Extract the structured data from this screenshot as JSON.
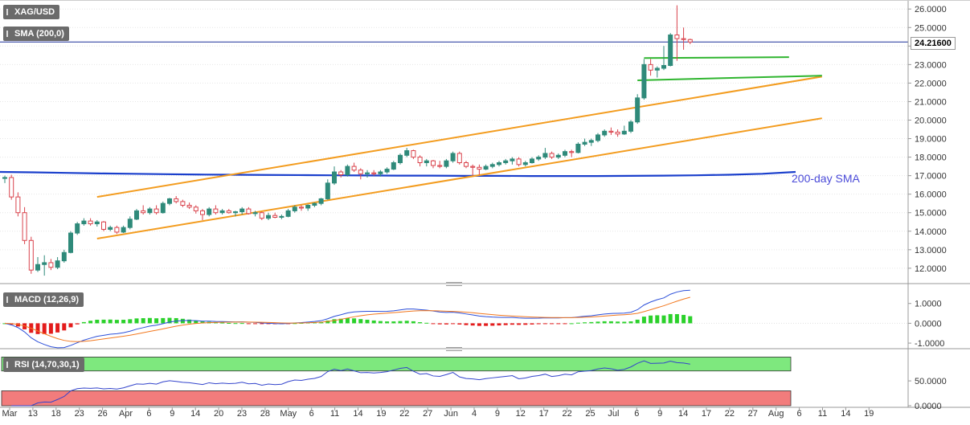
{
  "symbol": "XAG/USD",
  "current_price": "24.21600",
  "annotation": "200-day SMA",
  "colors": {
    "up": "#2f8a7a",
    "down": "#d9434c",
    "trend": "#f39c1f",
    "support": "#2fb52f",
    "sma": "#1a3fcc",
    "macd_line": "#2c4fd9",
    "signal_line": "#f2781f",
    "hist_pos": "#2bd12b",
    "hist_neg": "#e31b1b",
    "rsi_line": "#3344cc",
    "rsi_over": "#7ee87e",
    "rsi_under": "#f27c7c"
  },
  "indicators": {
    "sma_label": "SMA (200,0)",
    "macd_label": "MACD (12,26,9)",
    "rsi_label": "RSI (14,70,30,1)"
  },
  "chart_data": [
    {
      "type": "candlestick",
      "title": "XAG/USD",
      "ylim": [
        11.3,
        26.4
      ],
      "y_ticks": [
        "12.0000",
        "13.0000",
        "14.0000",
        "15.0000",
        "16.0000",
        "17.0000",
        "18.0000",
        "19.0000",
        "20.0000",
        "21.0000",
        "22.0000",
        "23.0000",
        "24.0000",
        "25.0000",
        "26.0000"
      ],
      "x_ticks": [
        "Mar",
        "13",
        "18",
        "23",
        "26",
        "Apr",
        "6",
        "9",
        "14",
        "20",
        "23",
        "28",
        "May",
        "6",
        "11",
        "14",
        "19",
        "22",
        "27",
        "Jun",
        "4",
        "9",
        "12",
        "17",
        "22",
        "25",
        "Jul",
        "6",
        "9",
        "14",
        "17",
        "22",
        "27",
        "Aug",
        "6",
        "11",
        "14",
        "19"
      ],
      "candles": [
        [
          16.85,
          17.0,
          16.6,
          16.9
        ],
        [
          16.9,
          17.05,
          15.7,
          15.85
        ],
        [
          15.85,
          16.1,
          14.8,
          15.0
        ],
        [
          15.0,
          15.3,
          13.3,
          13.5
        ],
        [
          13.5,
          13.7,
          11.7,
          11.9
        ],
        [
          11.9,
          12.6,
          11.8,
          12.2
        ],
        [
          12.2,
          12.7,
          11.6,
          12.3
        ],
        [
          12.3,
          12.5,
          11.9,
          12.05
        ],
        [
          12.05,
          12.6,
          11.95,
          12.4
        ],
        [
          12.4,
          13.0,
          12.3,
          12.85
        ],
        [
          12.85,
          14.0,
          12.8,
          13.9
        ],
        [
          13.9,
          14.5,
          13.8,
          14.4
        ],
        [
          14.4,
          14.7,
          14.3,
          14.55
        ],
        [
          14.55,
          14.7,
          14.3,
          14.4
        ],
        [
          14.4,
          14.6,
          14.25,
          14.5
        ],
        [
          14.5,
          14.55,
          14.0,
          14.1
        ],
        [
          14.1,
          14.3,
          14.0,
          14.2
        ],
        [
          14.2,
          14.3,
          13.85,
          13.95
        ],
        [
          13.95,
          14.3,
          13.9,
          14.2
        ],
        [
          14.2,
          14.8,
          14.1,
          14.65
        ],
        [
          14.65,
          15.2,
          14.6,
          15.1
        ],
        [
          15.1,
          15.4,
          14.9,
          15.0
        ],
        [
          15.0,
          15.3,
          14.9,
          15.2
        ],
        [
          15.2,
          15.4,
          14.9,
          15.0
        ],
        [
          15.0,
          15.6,
          14.95,
          15.5
        ],
        [
          15.5,
          15.8,
          15.4,
          15.75
        ],
        [
          15.75,
          15.9,
          15.5,
          15.6
        ],
        [
          15.6,
          15.7,
          15.3,
          15.4
        ],
        [
          15.4,
          15.55,
          15.2,
          15.3
        ],
        [
          15.3,
          15.4,
          14.95,
          15.1
        ],
        [
          15.1,
          15.2,
          14.6,
          14.9
        ],
        [
          14.9,
          15.3,
          14.8,
          15.2
        ],
        [
          15.2,
          15.4,
          14.9,
          15.0
        ],
        [
          15.0,
          15.2,
          14.9,
          15.1
        ],
        [
          15.1,
          15.2,
          14.95,
          15.0
        ],
        [
          15.0,
          15.1,
          14.8,
          15.05
        ],
        [
          15.05,
          15.3,
          14.9,
          15.2
        ],
        [
          15.2,
          15.3,
          14.9,
          14.95
        ],
        [
          14.95,
          15.1,
          14.8,
          15.0
        ],
        [
          15.0,
          15.05,
          14.6,
          14.7
        ],
        [
          14.7,
          15.0,
          14.6,
          14.85
        ],
        [
          14.85,
          15.0,
          14.7,
          14.75
        ],
        [
          14.75,
          14.9,
          14.65,
          14.8
        ],
        [
          14.8,
          15.2,
          14.75,
          15.1
        ],
        [
          15.1,
          15.4,
          15.0,
          15.3
        ],
        [
          15.3,
          15.4,
          15.1,
          15.25
        ],
        [
          15.25,
          15.45,
          15.1,
          15.4
        ],
        [
          15.4,
          15.55,
          15.3,
          15.5
        ],
        [
          15.5,
          15.8,
          15.4,
          15.75
        ],
        [
          15.75,
          16.8,
          15.7,
          16.6
        ],
        [
          16.6,
          17.5,
          16.5,
          17.2
        ],
        [
          17.2,
          17.3,
          16.9,
          17.05
        ],
        [
          17.05,
          17.6,
          16.95,
          17.5
        ],
        [
          17.5,
          17.7,
          17.2,
          17.3
        ],
        [
          17.3,
          17.4,
          16.8,
          17.1
        ],
        [
          17.1,
          17.3,
          16.9,
          17.15
        ],
        [
          17.15,
          17.3,
          17.0,
          17.1
        ],
        [
          17.1,
          17.3,
          16.95,
          17.2
        ],
        [
          17.2,
          17.45,
          17.1,
          17.35
        ],
        [
          17.35,
          17.8,
          17.3,
          17.7
        ],
        [
          17.7,
          18.2,
          17.6,
          18.1
        ],
        [
          18.1,
          18.5,
          18.0,
          18.35
        ],
        [
          18.35,
          18.4,
          17.9,
          18.0
        ],
        [
          18.0,
          18.1,
          17.5,
          17.7
        ],
        [
          17.7,
          17.9,
          17.5,
          17.8
        ],
        [
          17.8,
          17.85,
          17.4,
          17.55
        ],
        [
          17.55,
          17.8,
          17.4,
          17.5
        ],
        [
          17.5,
          17.9,
          17.4,
          17.8
        ],
        [
          17.8,
          18.3,
          17.7,
          18.2
        ],
        [
          18.2,
          18.3,
          17.6,
          17.7
        ],
        [
          17.7,
          17.8,
          17.4,
          17.5
        ],
        [
          17.5,
          17.6,
          17.0,
          17.45
        ],
        [
          17.45,
          17.6,
          17.05,
          17.35
        ],
        [
          17.35,
          17.6,
          17.3,
          17.5
        ],
        [
          17.5,
          17.7,
          17.4,
          17.6
        ],
        [
          17.6,
          17.8,
          17.5,
          17.7
        ],
        [
          17.7,
          17.9,
          17.6,
          17.8
        ],
        [
          17.8,
          18.0,
          17.6,
          17.9
        ],
        [
          17.9,
          18.0,
          17.5,
          17.6
        ],
        [
          17.6,
          17.8,
          17.5,
          17.7
        ],
        [
          17.7,
          18.0,
          17.65,
          17.9
        ],
        [
          17.9,
          18.1,
          17.8,
          18.0
        ],
        [
          18.0,
          18.5,
          17.9,
          18.2
        ],
        [
          18.2,
          18.3,
          17.9,
          18.0
        ],
        [
          18.0,
          18.2,
          17.9,
          18.1
        ],
        [
          18.1,
          18.4,
          18.0,
          18.3
        ],
        [
          18.3,
          18.4,
          18.0,
          18.25
        ],
        [
          18.25,
          18.8,
          18.2,
          18.7
        ],
        [
          18.7,
          19.0,
          18.6,
          18.8
        ],
        [
          18.8,
          19.0,
          18.6,
          18.9
        ],
        [
          18.9,
          19.3,
          18.8,
          19.2
        ],
        [
          19.2,
          19.5,
          19.1,
          19.4
        ],
        [
          19.4,
          19.6,
          19.2,
          19.35
        ],
        [
          19.35,
          19.5,
          19.1,
          19.25
        ],
        [
          19.25,
          19.7,
          19.2,
          19.4
        ],
        [
          19.4,
          20.0,
          19.3,
          19.9
        ],
        [
          19.9,
          21.4,
          19.8,
          21.2
        ],
        [
          21.2,
          23.3,
          21.1,
          23.0
        ],
        [
          23.0,
          23.3,
          22.4,
          22.7
        ],
        [
          22.7,
          22.9,
          22.3,
          22.8
        ],
        [
          22.8,
          24.0,
          22.7,
          22.95
        ],
        [
          22.95,
          24.7,
          22.9,
          24.6
        ],
        [
          24.6,
          26.2,
          23.2,
          24.4
        ],
        [
          24.4,
          25.0,
          23.8,
          24.35
        ],
        [
          24.35,
          24.4,
          24.1,
          24.22
        ]
      ],
      "sma_200": [
        17.2,
        17.18,
        17.15,
        17.12,
        17.1,
        17.08,
        17.06,
        17.05,
        17.04,
        17.03,
        17.02,
        17.01,
        17.0,
        17.0,
        16.99,
        16.99,
        16.98,
        16.98,
        16.98,
        16.99,
        17.0,
        17.02,
        17.05,
        17.1,
        17.2
      ],
      "trend_lines": [
        {
          "from": [
            14,
            15.85
          ],
          "to": [
            124,
            22.35
          ]
        },
        {
          "from": [
            14,
            13.6
          ],
          "to": [
            124,
            20.1
          ]
        },
        {
          "from": [
            96,
            22.15
          ],
          "to": [
            124,
            22.4
          ]
        },
        {
          "from": [
            97,
            23.35
          ],
          "to": [
            119,
            23.4
          ]
        }
      ]
    },
    {
      "type": "line",
      "title": "MACD (12,26,9)",
      "ylim": [
        -1.2,
        1.8
      ],
      "y_ticks": [
        "1.0000",
        "0.0000",
        "-1.0000"
      ]
    },
    {
      "type": "line",
      "title": "RSI (14,70,30,1)",
      "ylim": [
        0,
        110
      ],
      "y_ticks": [
        "50.0000",
        "0.0000"
      ],
      "levels": [
        70,
        30
      ]
    }
  ]
}
